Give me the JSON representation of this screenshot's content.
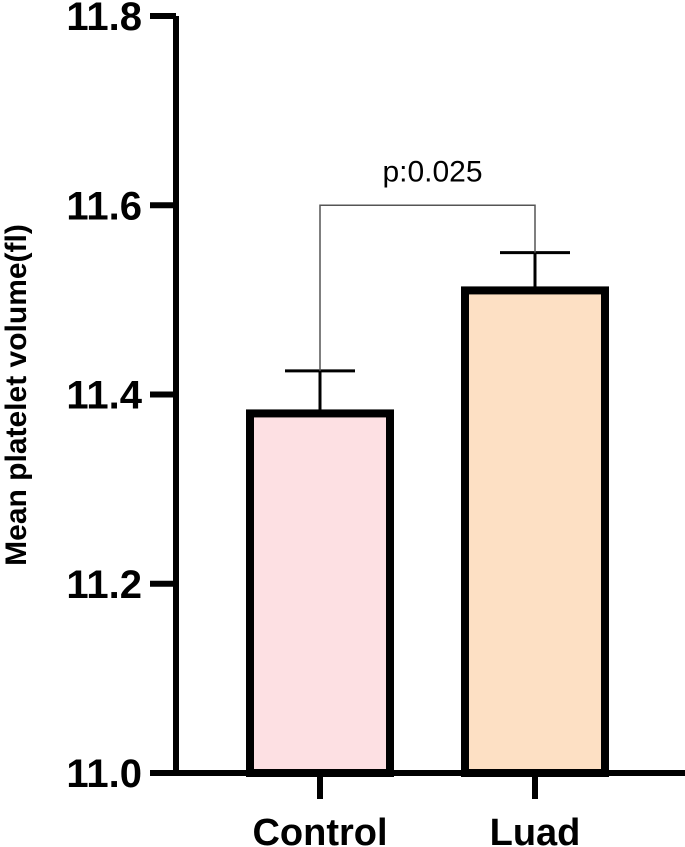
{
  "chart_data": {
    "type": "bar",
    "categories": [
      "Control",
      "Luad"
    ],
    "values": [
      11.38,
      11.51
    ],
    "error_upper": [
      11.425,
      11.55
    ],
    "ylabel": "Mean platelet volume(fl)",
    "xlabel": "",
    "ylim": [
      11.0,
      11.8
    ],
    "yticks": [
      11.0,
      11.2,
      11.4,
      11.6,
      11.8
    ],
    "ytick_labels": [
      "11.0",
      "11.2",
      "11.4",
      "11.6",
      "11.8"
    ],
    "bar_colors": [
      "#fde0e3",
      "#fde0c4"
    ],
    "bar_edge_color": "#000000",
    "grid": false,
    "legend": false,
    "annotation": {
      "text": "p:0.025",
      "between": [
        0,
        1
      ],
      "y": 11.6
    }
  }
}
